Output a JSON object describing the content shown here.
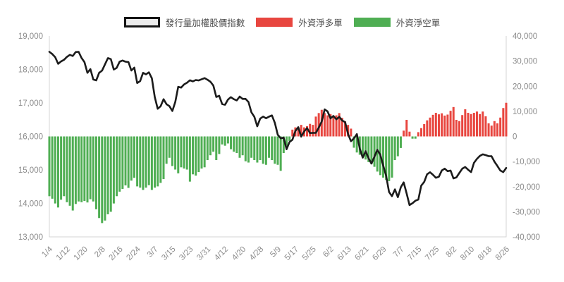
{
  "legend": {
    "items": [
      {
        "label": "發行量加權股價指數",
        "swatch": "outlined",
        "color": "#ebebeb",
        "border": "#141414"
      },
      {
        "label": "外資淨多單",
        "swatch": "solid",
        "color": "#e8463f"
      },
      {
        "label": "外資淨空單",
        "swatch": "solid",
        "color": "#4fae53"
      }
    ]
  },
  "chart_data": {
    "type": "line-bar-combo",
    "grid": false,
    "legend_position": "top-center",
    "colors": {
      "line": "#1b1b1b",
      "net_long": "#e8463f",
      "net_short": "#4fae53",
      "axis": "#d4d4d4",
      "tick_text": "#8c8c8c",
      "legend_text": "#4d4d4d"
    },
    "left_axis": {
      "min": 13000,
      "max": 19000,
      "step": 1000,
      "tick_labels": [
        "19,000",
        "18,000",
        "17,000",
        "16,000",
        "15,000",
        "14,000",
        "13,000"
      ]
    },
    "right_axis": {
      "min": -40000,
      "max": 40000,
      "step": 10000,
      "tick_labels": [
        "40,000",
        "30,000",
        "20,000",
        "10,000",
        "0",
        "-10,000",
        "-20,000",
        "-30,000",
        "-40,000"
      ]
    },
    "x_tick_every": 6,
    "x_tick_labels": [
      "1/4",
      "1/12",
      "1/20",
      "2/8",
      "2/16",
      "2/24",
      "3/7",
      "3/15",
      "3/23",
      "3/31",
      "4/12",
      "4/20",
      "4/28",
      "5/9",
      "5/17",
      "5/25",
      "6/2",
      "6/13",
      "6/21",
      "6/29",
      "7/7",
      "7/15",
      "7/25",
      "8/2",
      "8/10",
      "8/18",
      "8/26"
    ],
    "x": [
      "1/4",
      "1/5",
      "1/6",
      "1/7",
      "1/10",
      "1/11",
      "1/12",
      "1/13",
      "1/14",
      "1/17",
      "1/18",
      "1/19",
      "1/20",
      "1/21",
      "1/24",
      "1/25",
      "1/26",
      "2/7",
      "2/8",
      "2/9",
      "2/10",
      "2/11",
      "2/14",
      "2/15",
      "2/16",
      "2/17",
      "2/18",
      "2/21",
      "2/22",
      "2/23",
      "2/24",
      "2/25",
      "3/1",
      "3/2",
      "3/3",
      "3/4",
      "3/7",
      "3/8",
      "3/9",
      "3/10",
      "3/11",
      "3/14",
      "3/15",
      "3/16",
      "3/17",
      "3/18",
      "3/21",
      "3/22",
      "3/23",
      "3/24",
      "3/25",
      "3/28",
      "3/29",
      "3/30",
      "3/31",
      "4/1",
      "4/6",
      "4/7",
      "4/8",
      "4/11",
      "4/12",
      "4/13",
      "4/14",
      "4/15",
      "4/18",
      "4/19",
      "4/20",
      "4/21",
      "4/22",
      "4/25",
      "4/26",
      "4/27",
      "4/28",
      "4/29",
      "5/3",
      "5/4",
      "5/5",
      "5/6",
      "5/9",
      "5/10",
      "5/11",
      "5/12",
      "5/13",
      "5/16",
      "5/17",
      "5/18",
      "5/19",
      "5/20",
      "5/23",
      "5/24",
      "5/25",
      "5/26",
      "5/27",
      "5/30",
      "5/31",
      "6/1",
      "6/2",
      "6/6",
      "6/7",
      "6/8",
      "6/9",
      "6/10",
      "6/13",
      "6/14",
      "6/15",
      "6/16",
      "6/17",
      "6/20",
      "6/21",
      "6/22",
      "6/23",
      "6/24",
      "6/27",
      "6/28",
      "6/29",
      "6/30",
      "7/1",
      "7/4",
      "7/5",
      "7/6",
      "7/7",
      "7/8",
      "7/11",
      "7/12",
      "7/13",
      "7/14",
      "7/15",
      "7/18",
      "7/19",
      "7/20",
      "7/21",
      "7/22",
      "7/25",
      "7/26",
      "7/27",
      "7/28",
      "7/29",
      "8/1",
      "8/2",
      "8/3",
      "8/4",
      "8/5",
      "8/8",
      "8/9",
      "8/10",
      "8/11",
      "8/12",
      "8/15",
      "8/16",
      "8/17",
      "8/18",
      "8/19",
      "8/22",
      "8/23",
      "8/24",
      "8/25",
      "8/26"
    ],
    "line": {
      "name": "發行量加權股價指數",
      "axis": "left",
      "values": [
        18526,
        18460,
        18367,
        18169,
        18239,
        18288,
        18374,
        18436,
        18403,
        18519,
        18527,
        18342,
        18218,
        17899,
        18010,
        17701,
        17674,
        17900,
        17966,
        18151,
        18338,
        18310,
        17997,
        18048,
        18232,
        18268,
        18232,
        18221,
        17969,
        18055,
        17594,
        17652,
        17898,
        17855,
        17914,
        17736,
        17178,
        16825,
        16902,
        17111,
        16962,
        16903,
        16759,
        17027,
        17482,
        17456,
        17553,
        17602,
        17676,
        17645,
        17684,
        17672,
        17708,
        17740,
        17693,
        17632,
        17521,
        17178,
        17213,
        16966,
        16946,
        17102,
        17172,
        17111,
        17075,
        17190,
        17119,
        17122,
        17025,
        16720,
        16586,
        16303,
        16532,
        16592,
        16541,
        16589,
        16627,
        16408,
        16049,
        15944,
        15965,
        15616,
        15832,
        15901,
        16160,
        16275,
        15994,
        16145,
        16248,
        16101,
        16106,
        16106,
        16266,
        16445,
        16807,
        16748,
        16539,
        16610,
        16512,
        16585,
        16473,
        16430,
        16071,
        15857,
        15940,
        16070,
        15641,
        15367,
        15557,
        15348,
        15190,
        15394,
        15600,
        15455,
        15135,
        14825,
        14343,
        14216,
        14418,
        14186,
        14481,
        14628,
        14295,
        13950,
        14007,
        14081,
        14115,
        14530,
        14643,
        14869,
        14931,
        14853,
        14764,
        14795,
        14981,
        15037,
        14963,
        14981,
        14747,
        14777,
        14907,
        15036,
        15086,
        15007,
        14935,
        15211,
        15328,
        15417,
        15465,
        15442,
        15410,
        15408,
        15244,
        15117,
        14981,
        14935,
        15060
      ]
    },
    "bars": {
      "name_positive": "外資淨多單",
      "name_negative": "外資淨空單",
      "axis": "right",
      "values": [
        -23800,
        -24800,
        -26700,
        -28300,
        -25200,
        -23800,
        -26200,
        -27600,
        -29500,
        -26900,
        -25900,
        -26200,
        -25700,
        -26300,
        -25000,
        -25900,
        -29000,
        -32500,
        -34500,
        -33500,
        -31000,
        -30000,
        -26700,
        -23800,
        -22000,
        -20900,
        -19500,
        -20500,
        -17600,
        -16500,
        -19900,
        -20400,
        -21300,
        -20400,
        -19400,
        -21300,
        -20400,
        -19900,
        -18500,
        -17000,
        -10900,
        -8500,
        -11800,
        -13200,
        -14700,
        -12300,
        -12800,
        -13200,
        -18000,
        -15100,
        -15600,
        -14200,
        -12800,
        -12300,
        -9400,
        -7500,
        -6100,
        -9400,
        -7000,
        -3200,
        -3700,
        -2800,
        -5100,
        -6100,
        -6600,
        -8500,
        -7500,
        -9900,
        -10400,
        -8500,
        -9400,
        -10400,
        -9400,
        -10900,
        -11300,
        -8500,
        -9400,
        -10900,
        -11300,
        -13700,
        -6600,
        -3700,
        -1800,
        2700,
        3600,
        2700,
        4600,
        3600,
        4100,
        5000,
        4600,
        7900,
        9300,
        10600,
        9300,
        8400,
        8900,
        7900,
        8400,
        9300,
        7400,
        6000,
        4600,
        3100,
        -4500,
        -6400,
        -7300,
        -8300,
        -9200,
        -10200,
        -11100,
        -12100,
        -14000,
        -15400,
        -16400,
        -17300,
        -17800,
        -16400,
        -9400,
        -7900,
        -4600,
        2300,
        6600,
        1900,
        -900,
        -900,
        1700,
        3300,
        4900,
        6400,
        7500,
        8600,
        9400,
        8800,
        9200,
        8300,
        8700,
        10200,
        11700,
        6600,
        6100,
        8500,
        10800,
        9400,
        8900,
        9400,
        9900,
        8900,
        9900,
        8000,
        5200,
        4300,
        6100,
        5200,
        7500,
        11300,
        13400
      ]
    }
  }
}
